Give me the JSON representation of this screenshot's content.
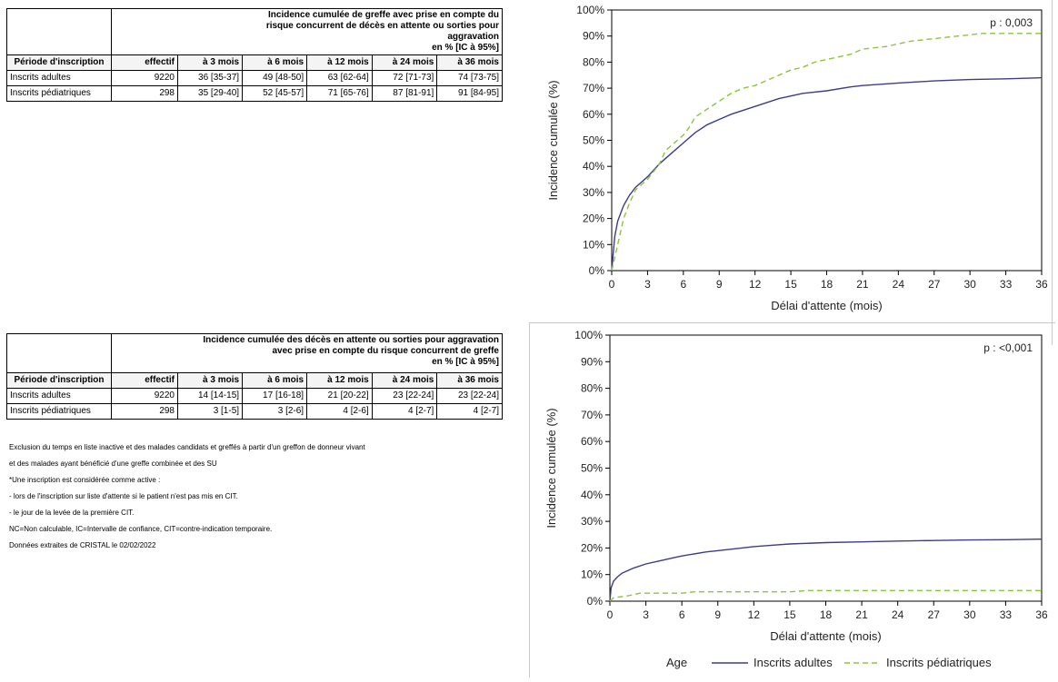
{
  "table1": {
    "header": "Incidence cumulée de greffe avec prise en compte du risque concurrent de décès en attente ou sorties pour aggravation",
    "unit": "en % [IC à 95%]",
    "columns": [
      "Période d'inscription",
      "effectif",
      "à 3 mois",
      "à 6 mois",
      "à 12 mois",
      "à 24 mois",
      "à 36 mois"
    ],
    "rows": [
      [
        "Inscrits adultes",
        "9220",
        "36 [35-37]",
        "49 [48-50]",
        "63 [62-64]",
        "72 [71-73]",
        "74 [73-75]"
      ],
      [
        "Inscrits pédiatriques",
        "298",
        "35 [29-40]",
        "52 [45-57]",
        "71 [65-76]",
        "87 [81-91]",
        "91 [84-95]"
      ]
    ]
  },
  "table2": {
    "header": "Incidence cumulée des décès en attente ou sorties pour aggravation avec prise en compte du risque concurrent de greffe",
    "unit": "en % [IC à 95%]",
    "columns": [
      "Période d'inscription",
      "effectif",
      "à 3 mois",
      "à 6 mois",
      "à 12 mois",
      "à 24 mois",
      "à 36 mois"
    ],
    "rows": [
      [
        "Inscrits adultes",
        "9220",
        "14 [14-15]",
        "17 [16-18]",
        "21 [20-22]",
        "23 [22-24]",
        "23 [22-24]"
      ],
      [
        "Inscrits pédiatriques",
        "298",
        "3 [1-5]",
        "3 [2-6]",
        "4 [2-6]",
        "4 [2-7]",
        "4 [2-7]"
      ]
    ]
  },
  "notes": [
    "Exclusion du temps en liste inactive et des malades candidats et greffés à partir d'un greffon de donneur vivant",
    "et des malades ayant bénéficié d'une greffe combinée et des SU",
    "*Une inscription est considérée comme active :",
    "- lors de l'inscription sur liste d'attente si le patient n'est pas mis en CIT.",
    "- le jour de la levée de la première CIT.",
    "NC=Non calculable, IC=Intervalle de confiance, CIT=contre-indication temporaire.",
    "Données extraites de CRISTAL le 02/02/2022"
  ],
  "legend": {
    "title": "Age",
    "items": [
      "Inscrits adultes",
      "Inscrits pédiatriques"
    ]
  },
  "chart_data": [
    {
      "type": "line",
      "title": "",
      "annotation": "p : 0,003",
      "xlabel": "Délai d'attente (mois)",
      "ylabel": "Incidence cumulée (%)",
      "xlim": [
        0,
        36
      ],
      "ylim": [
        0,
        100
      ],
      "xticks": [
        "0",
        "3",
        "6",
        "9",
        "12",
        "15",
        "18",
        "21",
        "24",
        "27",
        "30",
        "33",
        "36"
      ],
      "yticks": [
        "0%",
        "10%",
        "20%",
        "30%",
        "40%",
        "50%",
        "60%",
        "70%",
        "80%",
        "90%",
        "100%"
      ],
      "grid": false,
      "series": [
        {
          "name": "Inscrits adultes",
          "color": "#3c3c8c",
          "style": "solid",
          "x": [
            0,
            0.25,
            0.5,
            1,
            1.5,
            2,
            3,
            4,
            5,
            6,
            7,
            8,
            9,
            10,
            12,
            14,
            15,
            16,
            18,
            20,
            21,
            24,
            27,
            30,
            33,
            36
          ],
          "y": [
            0,
            13,
            19,
            25,
            29,
            32,
            36,
            41,
            45,
            49,
            53,
            56,
            58,
            60,
            63,
            66,
            67,
            68,
            69,
            70.5,
            71,
            72,
            72.8,
            73.3,
            73.6,
            74
          ]
        },
        {
          "name": "Inscrits pédiatriques",
          "color": "#8cc43c",
          "style": "dashed",
          "x": [
            0,
            0.5,
            1,
            1.5,
            2,
            3,
            4,
            4.5,
            5,
            6,
            6.5,
            7,
            8,
            9,
            10,
            11,
            12,
            13,
            14,
            15,
            16,
            17,
            18,
            19,
            20,
            21,
            22,
            23,
            24,
            25,
            26,
            27,
            28,
            29,
            30,
            31,
            33,
            36
          ],
          "y": [
            0,
            10,
            20,
            26,
            31,
            35,
            41,
            46,
            48,
            52,
            55,
            59,
            62,
            65,
            68,
            70,
            71,
            73,
            75,
            77,
            78,
            80,
            81,
            82,
            83,
            85,
            85.5,
            86,
            87,
            88,
            88.5,
            89,
            89.5,
            90,
            90.5,
            91,
            91,
            91
          ]
        }
      ]
    },
    {
      "type": "line",
      "title": "",
      "annotation": "p : <0,001",
      "xlabel": "Délai d'attente (mois)",
      "ylabel": "Incidence cumulée (%)",
      "xlim": [
        0,
        36
      ],
      "ylim": [
        0,
        100
      ],
      "xticks": [
        "0",
        "3",
        "6",
        "9",
        "12",
        "15",
        "18",
        "21",
        "24",
        "27",
        "30",
        "33",
        "36"
      ],
      "yticks": [
        "0%",
        "10%",
        "20%",
        "30%",
        "40%",
        "50%",
        "60%",
        "70%",
        "80%",
        "90%",
        "100%"
      ],
      "grid": false,
      "series": [
        {
          "name": "Inscrits adultes",
          "color": "#3c3c8c",
          "style": "solid",
          "x": [
            0,
            0.1,
            0.3,
            0.6,
            1,
            2,
            3,
            4,
            5,
            6,
            8,
            10,
            12,
            14,
            15,
            18,
            21,
            24,
            27,
            30,
            33,
            36
          ],
          "y": [
            0,
            5,
            7.5,
            9,
            10.5,
            12.5,
            14,
            15,
            16,
            17,
            18.5,
            19.5,
            20.5,
            21.2,
            21.5,
            22,
            22.3,
            22.6,
            22.8,
            23,
            23.1,
            23.3
          ]
        },
        {
          "name": "Inscrits pédiatriques",
          "color": "#8cc43c",
          "style": "dashed",
          "x": [
            0,
            0.3,
            1.5,
            2.5,
            4,
            6,
            7,
            9,
            12,
            15,
            16.5,
            18,
            21,
            24,
            27,
            30,
            33,
            36
          ],
          "y": [
            0,
            1.3,
            2,
            3,
            3,
            3,
            3.5,
            3.5,
            3.5,
            3.5,
            4,
            4,
            4,
            4,
            4,
            4,
            4,
            4
          ]
        }
      ]
    }
  ]
}
